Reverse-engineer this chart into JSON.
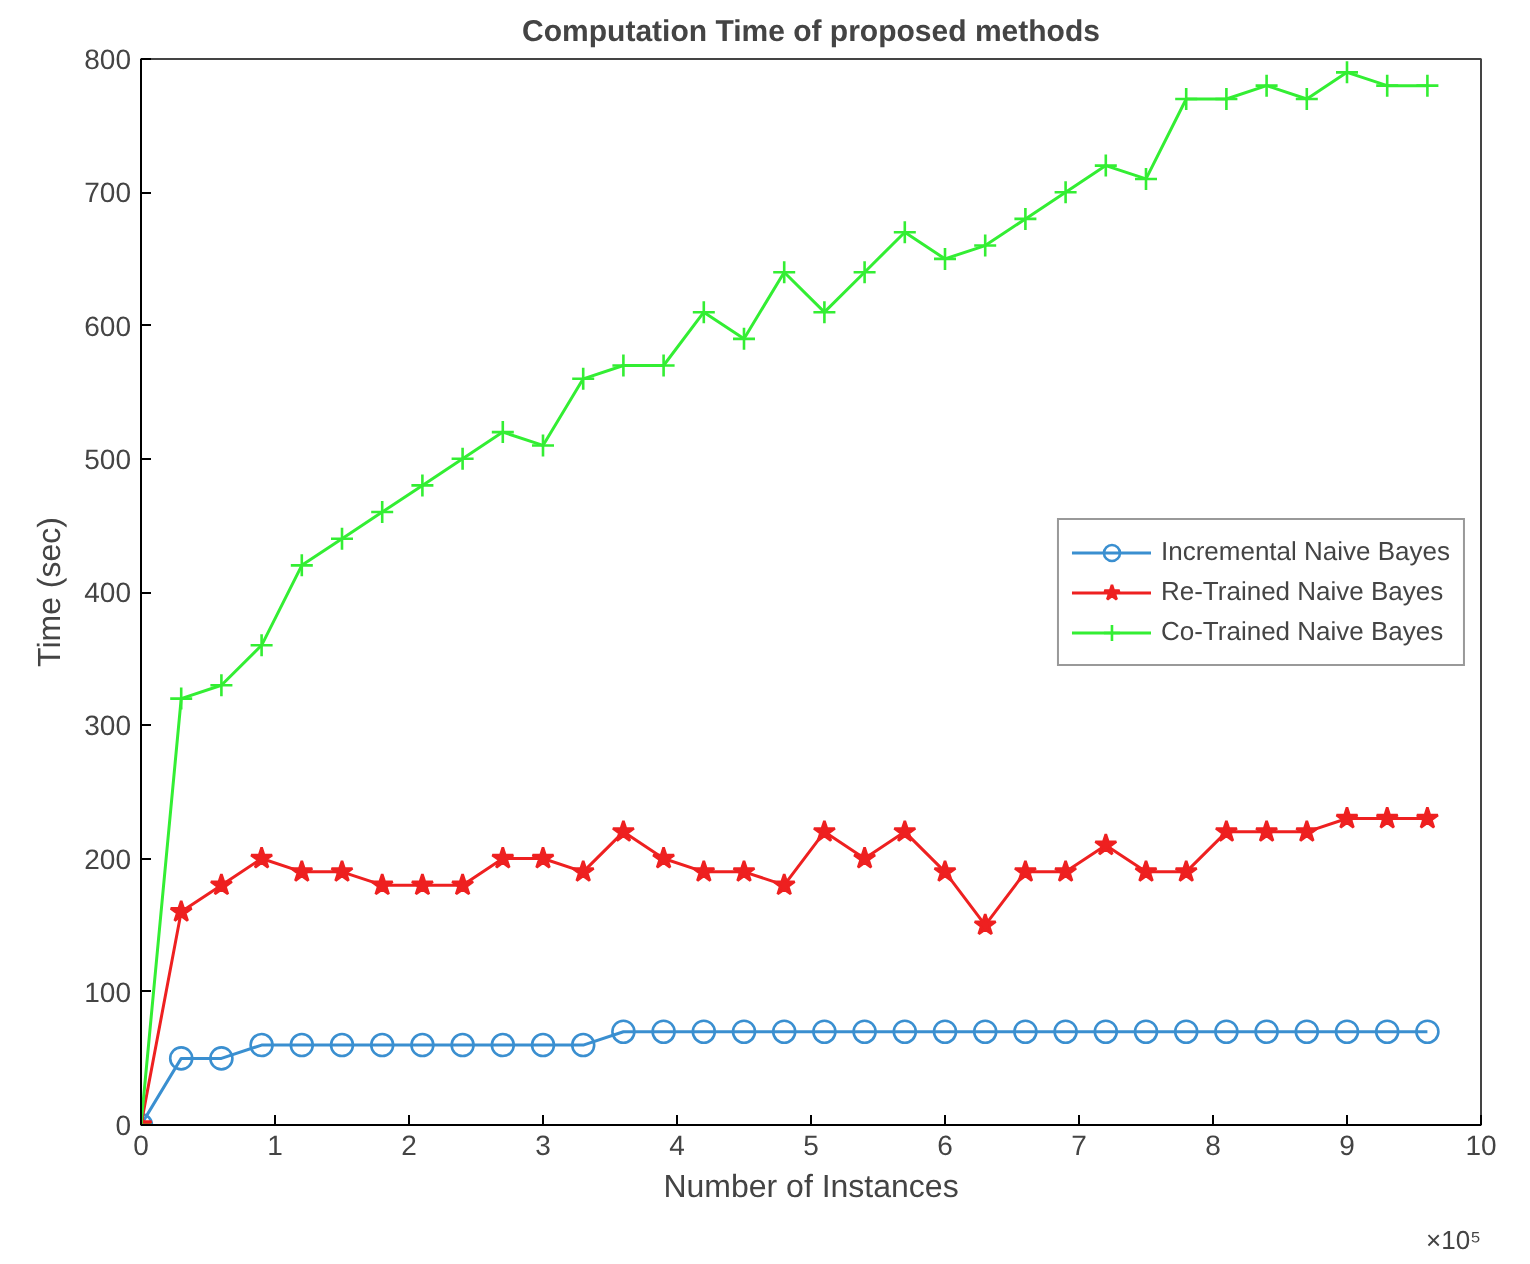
{
  "chart_data": {
    "type": "line",
    "title": "Computation Time of proposed methods",
    "xlabel": "Number of Instances",
    "ylabel": "Time (sec)",
    "x": [
      0,
      0.3,
      0.6,
      0.9,
      1.2,
      1.5,
      1.8,
      2.1,
      2.4,
      2.7,
      3.0,
      3.3,
      3.6,
      3.9,
      4.2,
      4.5,
      4.8,
      5.1,
      5.4,
      5.7,
      6.0,
      6.3,
      6.6,
      6.9,
      7.2,
      7.5,
      7.8,
      8.1,
      8.4,
      8.7,
      9.0,
      9.3,
      9.6
    ],
    "series": [
      {
        "name": "Incremental Naive Bayes",
        "color": "#3a8fd0",
        "marker": "circle",
        "values": [
          0,
          50,
          50,
          60,
          60,
          60,
          60,
          60,
          60,
          60,
          60,
          60,
          70,
          70,
          70,
          70,
          70,
          70,
          70,
          70,
          70,
          70,
          70,
          70,
          70,
          70,
          70,
          70,
          70,
          70,
          70,
          70,
          70
        ]
      },
      {
        "name": "Re-Trained Naive Bayes",
        "color": "#ee2020",
        "marker": "star",
        "values": [
          0,
          160,
          180,
          200,
          190,
          190,
          180,
          180,
          180,
          200,
          200,
          190,
          220,
          200,
          190,
          190,
          180,
          220,
          200,
          220,
          190,
          150,
          190,
          190,
          210,
          190,
          190,
          220,
          220,
          220,
          230,
          230,
          230
        ]
      },
      {
        "name": "Co-Trained Naive Bayes",
        "color": "#33ee33",
        "marker": "cross",
        "values": [
          0,
          320,
          330,
          360,
          420,
          440,
          460,
          480,
          500,
          520,
          510,
          560,
          570,
          570,
          610,
          590,
          640,
          610,
          640,
          670,
          650,
          660,
          680,
          700,
          720,
          710,
          770,
          770,
          780,
          770,
          790,
          780,
          780
        ]
      }
    ],
    "xlim": [
      0,
      10
    ],
    "xticks": [
      0,
      1,
      2,
      3,
      4,
      5,
      6,
      7,
      8,
      9,
      10
    ],
    "ylim": [
      0,
      800
    ],
    "yticks": [
      0,
      100,
      200,
      300,
      400,
      500,
      600,
      700,
      800
    ],
    "annotations": [
      "×10⁵"
    ],
    "grid": false,
    "legend": "right",
    "line_style": "solid"
  }
}
